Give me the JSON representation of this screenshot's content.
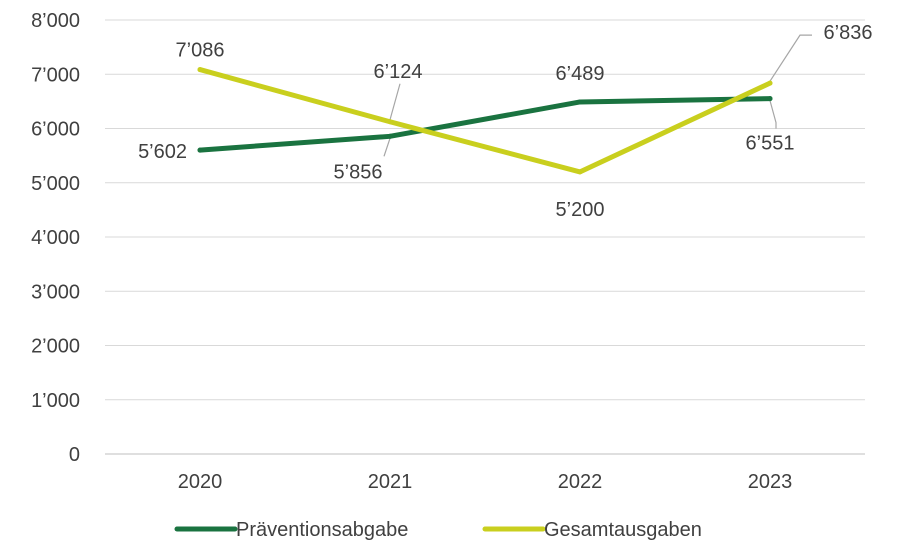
{
  "chart_data": {
    "type": "line",
    "categories": [
      "2020",
      "2021",
      "2022",
      "2023"
    ],
    "ylim": [
      0,
      8000
    ],
    "yticks": [
      0,
      1000,
      2000,
      3000,
      4000,
      5000,
      6000,
      7000,
      8000
    ],
    "ytick_labels": [
      "0",
      "1’000",
      "2’000",
      "3’000",
      "4’000",
      "5’000",
      "6’000",
      "7’000",
      "8’000"
    ],
    "grid": true,
    "legend_position": "bottom",
    "series": [
      {
        "name": "Präventionsabgabe",
        "color": "#1a7340",
        "values": [
          5602,
          5856,
          6489,
          6551
        ],
        "labels": [
          "5’602",
          "5’856",
          "6’489",
          "6’551"
        ]
      },
      {
        "name": "Gesamtausgaben",
        "color": "#c9cf1e",
        "values": [
          7086,
          6124,
          5200,
          6836
        ],
        "labels": [
          "7’086",
          "6’124",
          "5’200",
          "6’836"
        ]
      }
    ]
  }
}
